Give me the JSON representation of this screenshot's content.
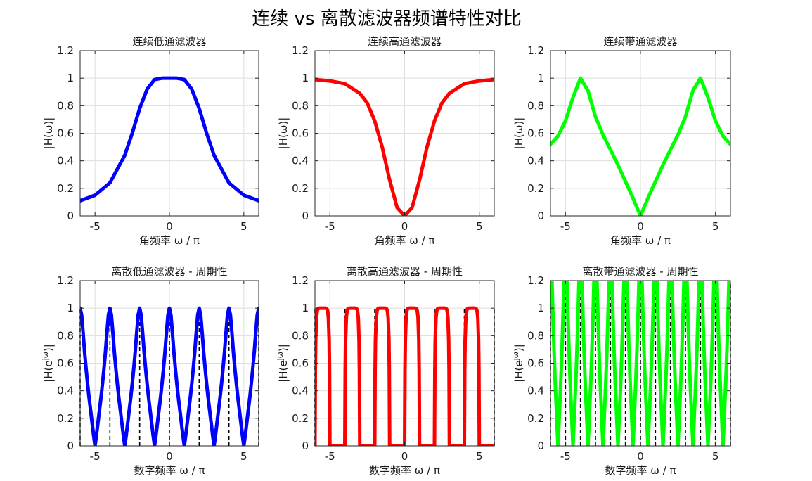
{
  "figure": {
    "title": "连续 vs 离散滤波器频谱特性对比"
  },
  "chart_data": [
    {
      "type": "line",
      "title": "连续低通滤波器",
      "xlabel": "角频率 ω / π",
      "ylabel": "|H(ω)|",
      "xlim": [
        -6,
        6
      ],
      "ylim": [
        0,
        1.2
      ],
      "xticks": [
        -5,
        0,
        5
      ],
      "yticks": [
        0,
        0.2,
        0.4,
        0.6,
        0.8,
        1,
        1.2
      ],
      "grid": true,
      "series": [
        {
          "color": "#0000ff",
          "x": [
            -6,
            -5,
            -4,
            -3,
            -2.5,
            -2,
            -1.5,
            -1,
            -0.5,
            0,
            0.5,
            1,
            1.5,
            2,
            2.5,
            3,
            4,
            5,
            6
          ],
          "y": [
            0.11,
            0.15,
            0.24,
            0.44,
            0.6,
            0.78,
            0.92,
            0.99,
            1.0,
            1.0,
            1.0,
            0.99,
            0.92,
            0.78,
            0.6,
            0.44,
            0.24,
            0.15,
            0.11
          ]
        }
      ]
    },
    {
      "type": "line",
      "title": "连续高通滤波器",
      "xlabel": "角频率 ω / π",
      "ylabel": "|H(ω)|",
      "xlim": [
        -6,
        6
      ],
      "ylim": [
        0,
        1.2
      ],
      "xticks": [
        -5,
        0,
        5
      ],
      "yticks": [
        0,
        0.2,
        0.4,
        0.6,
        0.8,
        1,
        1.2
      ],
      "grid": true,
      "series": [
        {
          "color": "#ff0000",
          "x": [
            -6,
            -5,
            -4,
            -3,
            -2.5,
            -2,
            -1.5,
            -1,
            -0.5,
            0,
            0.5,
            1,
            1.5,
            2,
            2.5,
            3,
            4,
            5,
            6
          ],
          "y": [
            0.99,
            0.98,
            0.96,
            0.89,
            0.82,
            0.69,
            0.5,
            0.26,
            0.06,
            0.0,
            0.06,
            0.26,
            0.5,
            0.69,
            0.82,
            0.89,
            0.96,
            0.98,
            0.99
          ]
        }
      ]
    },
    {
      "type": "line",
      "title": "连续带通滤波器",
      "xlabel": "角频率 ω / π",
      "ylabel": "|H(ω)|",
      "xlim": [
        -6,
        6
      ],
      "ylim": [
        0,
        1.2
      ],
      "xticks": [
        -5,
        0,
        5
      ],
      "yticks": [
        0,
        0.2,
        0.4,
        0.6,
        0.8,
        1,
        1.2
      ],
      "grid": true,
      "series": [
        {
          "color": "#00ff00",
          "x": [
            -6,
            -5.5,
            -5,
            -4.5,
            -4,
            -3.5,
            -3,
            -2.5,
            -2,
            -1.5,
            -1,
            -0.5,
            0,
            0.5,
            1,
            1.5,
            2,
            2.5,
            3,
            3.5,
            4,
            4.5,
            5,
            5.5,
            6
          ],
          "y": [
            0.52,
            0.58,
            0.69,
            0.86,
            1.0,
            0.91,
            0.72,
            0.59,
            0.48,
            0.37,
            0.25,
            0.13,
            0.0,
            0.13,
            0.25,
            0.37,
            0.48,
            0.59,
            0.72,
            0.91,
            1.0,
            0.86,
            0.69,
            0.58,
            0.52
          ]
        }
      ]
    },
    {
      "type": "line",
      "title": "离散低通滤波器 - 周期性",
      "xlabel": "数字频率 ω / π",
      "ylabel": "|H(e^{jω})|",
      "xlim": [
        -6,
        6
      ],
      "ylim": [
        0,
        1.2
      ],
      "xticks": [
        -5,
        0,
        5
      ],
      "yticks": [
        0,
        0.2,
        0.4,
        0.6,
        0.8,
        1,
        1.2
      ],
      "grid": true,
      "period": 2,
      "period_boundaries": [
        -6,
        -4,
        -2,
        0,
        2,
        4,
        6
      ],
      "boundary_line_height": 1.0,
      "series": [
        {
          "color": "#0000ff",
          "x": [
            -1,
            -0.9,
            -0.8,
            -0.7,
            -0.6,
            -0.5,
            -0.4,
            -0.3,
            -0.2,
            -0.1,
            0,
            0.1,
            0.2,
            0.3,
            0.4,
            0.5,
            0.6,
            0.7,
            0.8,
            0.9,
            1
          ],
          "y": [
            0.0,
            0.08,
            0.17,
            0.26,
            0.35,
            0.45,
            0.56,
            0.68,
            0.82,
            0.95,
            1.0,
            0.95,
            0.82,
            0.68,
            0.56,
            0.45,
            0.35,
            0.26,
            0.17,
            0.08,
            0.0
          ]
        }
      ]
    },
    {
      "type": "line",
      "title": "离散高通滤波器 - 周期性",
      "xlabel": "数字频率 ω / π",
      "ylabel": "|H(e^{jω})|",
      "xlim": [
        -6,
        6
      ],
      "ylim": [
        0,
        1.2
      ],
      "xticks": [
        -5,
        0,
        5
      ],
      "yticks": [
        0,
        0.2,
        0.4,
        0.6,
        0.8,
        1,
        1.2
      ],
      "grid": true,
      "period": 2,
      "period_boundaries": [
        -6,
        -4,
        -2,
        0,
        2,
        4,
        6
      ],
      "boundary_line_height": 1.0,
      "series": [
        {
          "color": "#ff0000",
          "x": [
            0,
            0.025,
            0.05,
            0.1,
            0.15,
            0.2,
            0.3,
            0.4,
            0.5,
            0.6,
            0.7,
            0.8,
            0.85,
            0.9,
            0.95,
            0.975,
            1
          ],
          "y": [
            0.0,
            0.55,
            0.77,
            0.93,
            0.98,
            0.995,
            1.0,
            1.0,
            1.0,
            1.0,
            1.0,
            0.995,
            0.98,
            0.93,
            0.77,
            0.55,
            0.0
          ]
        }
      ]
    },
    {
      "type": "line",
      "title": "离散带通滤波器 - 周期性",
      "xlabel": "数字频率 ω / π",
      "ylabel": "|H(e^{jω})|",
      "xlim": [
        -6,
        6
      ],
      "ylim": [
        0,
        1.2
      ],
      "xticks": [
        -5,
        0,
        5
      ],
      "yticks": [
        0,
        0.2,
        0.4,
        0.6,
        0.8,
        1,
        1.2
      ],
      "grid": true,
      "period": 1,
      "period_boundaries": [
        -6,
        -5,
        -4,
        -3,
        -2,
        -1,
        0,
        1,
        2,
        3,
        4,
        5,
        6
      ],
      "boundary_line_height": 1.2,
      "series": [
        {
          "color": "#00ff00",
          "x": [
            -0.5,
            -0.45,
            -0.4,
            -0.35,
            -0.3,
            -0.25,
            -0.2,
            -0.15,
            -0.1,
            -0.05,
            0,
            0.05,
            0.1,
            0.15,
            0.2,
            0.25,
            0.3,
            0.35,
            0.4,
            0.45,
            0.5
          ],
          "y": [
            0.0,
            0.12,
            0.25,
            0.37,
            0.5,
            0.65,
            0.82,
            1.0,
            1.2,
            1.2,
            1.2,
            1.2,
            1.2,
            1.0,
            0.82,
            0.65,
            0.5,
            0.37,
            0.25,
            0.12,
            0.0
          ]
        }
      ]
    }
  ]
}
